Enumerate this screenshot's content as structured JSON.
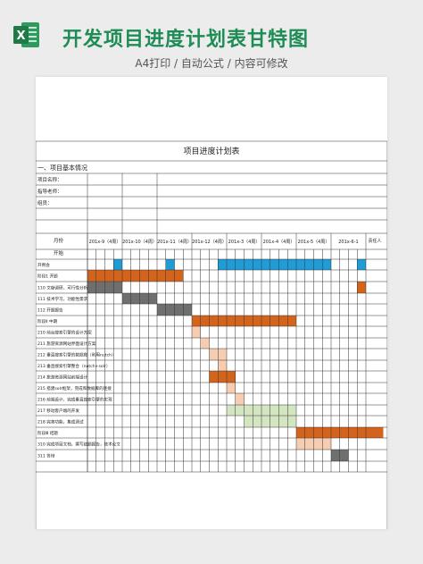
{
  "banner": {
    "title": "开发项目进度计划表甘特图",
    "subtitle": "A4打印 / 自动公式 / 内容可修改",
    "logo_letter": "X"
  },
  "table": {
    "title": "项目进度计划表",
    "section": "一、项目基本情况",
    "info_labels": [
      "项目名称：",
      "指导老师：",
      "组员："
    ],
    "month_label": "月份",
    "months": [
      "201x-9（4周）",
      "201x-10（4周）",
      "201x-11（4周）",
      "201x-12（4周）",
      "201x-3（4周）",
      "201x-4（4周）",
      "201x-5（4周）",
      "201x-6-1"
    ],
    "owner_label": "责任人",
    "start_label": "开始",
    "colors": {
      "blue": "#1f9bd5",
      "orange": "#d4641c",
      "peach": "#f6cdb0",
      "green": "#d3e6c1",
      "gray": "#6f6f6f",
      "border": "#333333"
    },
    "tasks": [
      {
        "label": "开例会",
        "bars": [
          [
            4,
            1,
            "blue"
          ],
          [
            10,
            1,
            "blue"
          ],
          [
            16,
            13,
            "blue"
          ],
          [
            32,
            1,
            "blue"
          ]
        ]
      },
      {
        "label": "阶段1 开题",
        "bars": [
          [
            1,
            11,
            "orange"
          ]
        ]
      },
      {
        "label": "110 文献调研，可行性分析",
        "bars": [
          [
            1,
            4,
            "gray"
          ],
          [
            32,
            1,
            "orange"
          ]
        ]
      },
      {
        "label": "111 技术学习，功能性需求",
        "bars": [
          [
            5,
            4,
            "gray"
          ]
        ]
      },
      {
        "label": "112 开题报告",
        "bars": [
          [
            9,
            4,
            "gray"
          ]
        ]
      },
      {
        "label": "阶段Ⅱ 中期",
        "bars": [
          [
            13,
            12,
            "orange"
          ]
        ]
      },
      {
        "label": "210 前台搜索引擎的设计方案",
        "bars": [
          [
            13,
            1,
            "peach"
          ]
        ]
      },
      {
        "label": "211 旅游资源网站界面设计方案",
        "bars": [
          [
            14,
            1,
            "peach"
          ]
        ]
      },
      {
        "label": "212 垂直搜索引擎的数据爬（利用nutch）",
        "bars": [
          [
            15,
            2,
            "peach"
          ]
        ]
      },
      {
        "label": "213 垂直搜索引擎整合（nutch+solr）",
        "bars": [
          [
            16,
            1,
            "peach"
          ]
        ]
      },
      {
        "label": "214 旅游资源网站前端设计",
        "bars": [
          [
            15,
            3,
            "orange"
          ]
        ]
      },
      {
        "label": "215 搭建solr框架，完成和数据库的连接",
        "bars": [
          [
            17,
            1,
            "peach"
          ]
        ]
      },
      {
        "label": "216 前端设计，完成垂直搜索引擎的实现",
        "bars": [
          [
            18,
            1,
            "peach"
          ]
        ]
      },
      {
        "label": "217 移动客户端的开发",
        "bars": [
          [
            17,
            8,
            "green"
          ]
        ]
      },
      {
        "label": "218 完善功能，集成测试",
        "bars": [
          [
            19,
            6,
            "green"
          ]
        ]
      },
      {
        "label": "阶段Ⅲ 结题",
        "bars": [
          [
            25,
            10,
            "orange"
          ]
        ]
      },
      {
        "label": "310 完成项目文档，撰写结题报告，技术论文",
        "bars": [
          [
            25,
            4,
            "peach"
          ]
        ]
      },
      {
        "label": "311 答辩",
        "bars": [
          [
            29,
            2,
            "gray"
          ]
        ]
      },
      {
        "label": "",
        "bars": []
      }
    ]
  }
}
